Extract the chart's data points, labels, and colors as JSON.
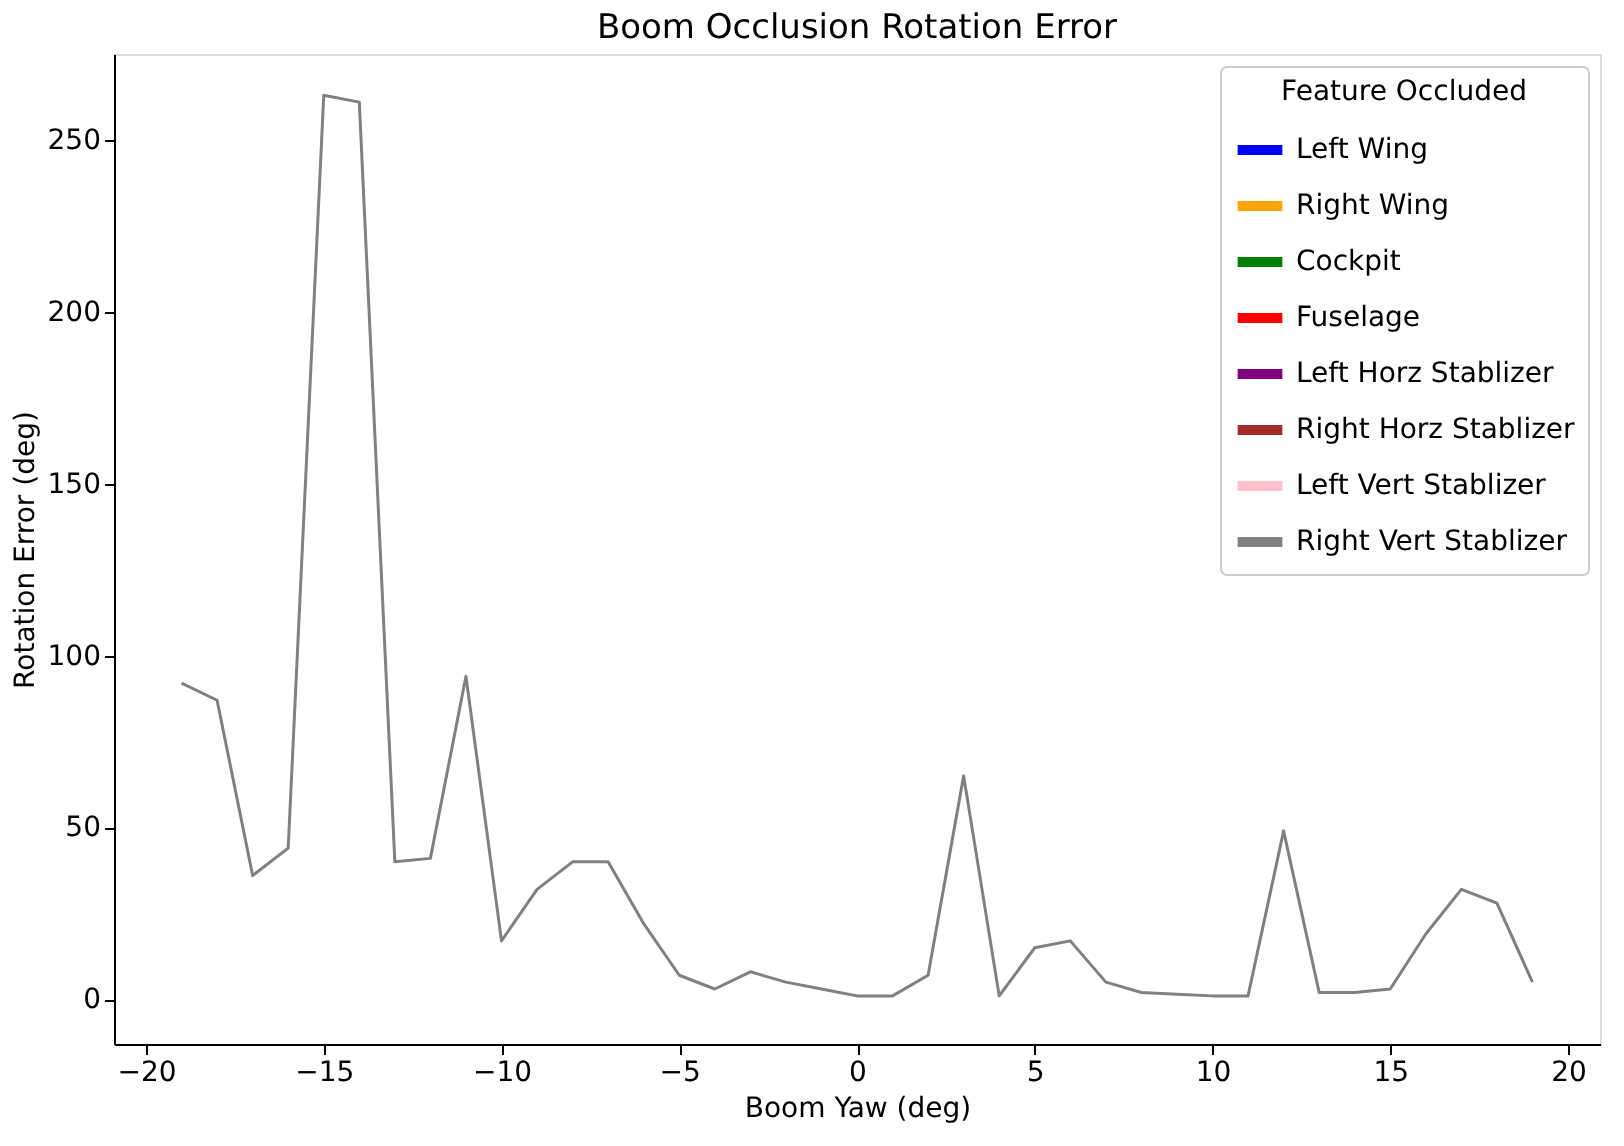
{
  "chart_data": {
    "type": "line",
    "title": "Boom Occlusion Rotation Error",
    "xlabel": "Boom Yaw (deg)",
    "ylabel": "Rotation Error (deg)",
    "legend_title": "Feature Occluded",
    "legend": "top right",
    "grid": false,
    "marker": "none",
    "line_style": "solid",
    "x": [
      -19,
      -18,
      -17,
      -16,
      -15,
      -14,
      -13,
      -12,
      -11,
      -10,
      -9,
      -8,
      -7,
      -6,
      -5,
      -4,
      -3,
      -2,
      -1,
      0,
      1,
      2,
      3,
      4,
      5,
      6,
      7,
      8,
      9,
      10,
      11,
      12,
      13,
      14,
      15,
      16,
      17,
      18,
      19
    ],
    "xlim": [
      -20.9,
      20.9
    ],
    "xticks": [
      -20,
      -15,
      -10,
      -5,
      0,
      5,
      10,
      15,
      20
    ],
    "ylim": [
      -13,
      275
    ],
    "yticks": [
      0,
      50,
      100,
      150,
      200,
      250
    ],
    "series": [
      {
        "name": "Left Wing",
        "color": "#0000ff",
        "values": [
          null,
          null,
          null,
          null,
          null,
          null,
          null,
          null,
          null,
          null,
          null,
          null,
          null,
          null,
          null,
          null,
          null,
          null,
          null,
          null,
          null,
          null,
          null,
          null,
          null,
          null,
          null,
          null,
          null,
          null,
          null,
          null,
          null,
          null,
          null,
          null,
          null,
          null,
          null
        ]
      },
      {
        "name": "Right Wing",
        "color": "#ffa500",
        "values": [
          null,
          null,
          null,
          null,
          null,
          null,
          null,
          null,
          null,
          null,
          null,
          null,
          null,
          null,
          null,
          null,
          null,
          null,
          null,
          null,
          null,
          null,
          null,
          null,
          null,
          null,
          null,
          null,
          null,
          null,
          null,
          null,
          null,
          null,
          null,
          null,
          null,
          null,
          null
        ]
      },
      {
        "name": "Cockpit",
        "color": "#008000",
        "values": [
          null,
          null,
          null,
          null,
          null,
          null,
          null,
          null,
          null,
          null,
          null,
          null,
          null,
          null,
          null,
          null,
          null,
          null,
          null,
          null,
          null,
          null,
          null,
          null,
          null,
          null,
          null,
          null,
          null,
          null,
          null,
          null,
          null,
          null,
          null,
          null,
          null,
          null,
          null
        ]
      },
      {
        "name": "Fuselage",
        "color": "#ff0000",
        "values": [
          null,
          null,
          null,
          null,
          null,
          null,
          null,
          null,
          null,
          null,
          null,
          null,
          null,
          null,
          null,
          null,
          null,
          null,
          null,
          null,
          null,
          null,
          null,
          null,
          null,
          null,
          null,
          null,
          null,
          null,
          null,
          null,
          null,
          null,
          null,
          null,
          null,
          null,
          null
        ]
      },
      {
        "name": "Left Horz Stablizer",
        "color": "#800080",
        "values": [
          null,
          null,
          null,
          null,
          null,
          null,
          null,
          null,
          null,
          null,
          null,
          null,
          null,
          null,
          null,
          null,
          null,
          null,
          null,
          null,
          null,
          null,
          null,
          null,
          null,
          null,
          null,
          null,
          null,
          null,
          null,
          null,
          null,
          null,
          null,
          null,
          null,
          null,
          null
        ]
      },
      {
        "name": "Right Horz Stablizer",
        "color": "#a52a2a",
        "values": [
          null,
          null,
          null,
          null,
          null,
          null,
          null,
          null,
          null,
          null,
          null,
          null,
          null,
          null,
          null,
          null,
          null,
          null,
          null,
          null,
          null,
          null,
          null,
          null,
          null,
          null,
          null,
          null,
          null,
          null,
          null,
          null,
          null,
          null,
          null,
          null,
          null,
          null,
          null
        ]
      },
      {
        "name": "Left Vert Stablizer",
        "color": "#ffc0cb",
        "values": [
          null,
          null,
          null,
          null,
          null,
          null,
          null,
          null,
          null,
          null,
          null,
          null,
          null,
          null,
          null,
          null,
          null,
          null,
          null,
          null,
          null,
          null,
          null,
          null,
          null,
          null,
          null,
          null,
          null,
          null,
          null,
          null,
          null,
          null,
          null,
          null,
          null,
          null,
          null
        ]
      },
      {
        "name": "Right Vert Stablizer",
        "color": "#808080",
        "values": [
          92,
          87,
          36,
          44,
          263,
          261,
          40,
          41,
          94,
          17,
          32,
          40,
          40,
          22,
          7,
          3,
          8,
          5,
          3,
          1,
          1,
          7,
          65,
          1,
          15,
          17,
          5,
          2,
          1.5,
          1,
          1,
          49,
          2,
          2,
          3,
          19,
          32,
          28,
          5
        ]
      }
    ]
  }
}
